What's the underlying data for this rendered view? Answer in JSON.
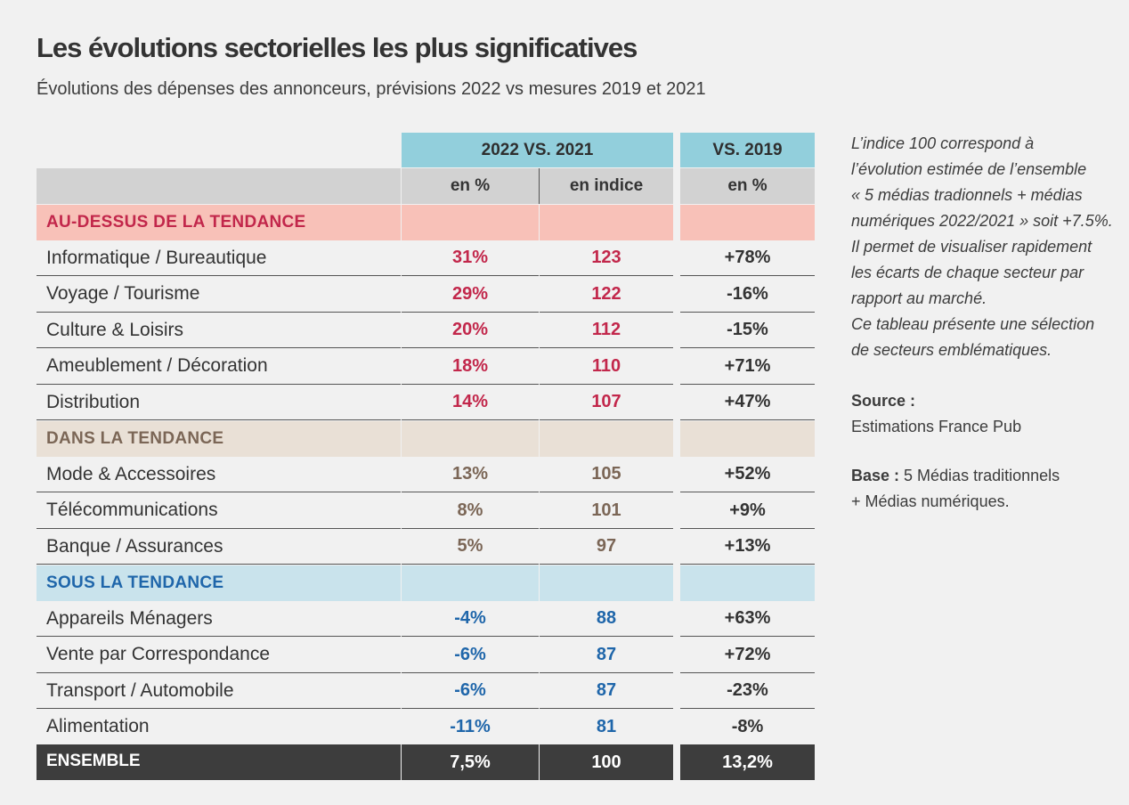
{
  "title": "Les évolutions sectorielles les plus significatives",
  "subtitle": "Évolutions des dépenses des annonceurs, prévisions 2022 vs mesures 2019 et 2021",
  "header": {
    "group1": "2022 VS. 2021",
    "group2": "VS. 2019",
    "col1": "en %",
    "col2": "en indice",
    "col3": "en %"
  },
  "sections": [
    {
      "label": "AU-DESSUS DE LA TENDANCE",
      "rows": [
        {
          "name": "Informatique / Bureautique",
          "pct": "31%",
          "index": "123",
          "vs2019": "+78%"
        },
        {
          "name": "Voyage / Tourisme",
          "pct": "29%",
          "index": "122",
          "vs2019": "-16%"
        },
        {
          "name": "Culture & Loisirs",
          "pct": "20%",
          "index": "112",
          "vs2019": "-15%"
        },
        {
          "name": "Ameublement / Décoration",
          "pct": "18%",
          "index": "110",
          "vs2019": "+71%"
        },
        {
          "name": "Distribution",
          "pct": "14%",
          "index": "107",
          "vs2019": "+47%"
        }
      ]
    },
    {
      "label": "DANS LA TENDANCE",
      "rows": [
        {
          "name": "Mode & Accessoires",
          "pct": "13%",
          "index": "105",
          "vs2019": "+52%"
        },
        {
          "name": "Télécommunications",
          "pct": "8%",
          "index": "101",
          "vs2019": "+9%"
        },
        {
          "name": "Banque / Assurances",
          "pct": "5%",
          "index": "97",
          "vs2019": "+13%"
        }
      ]
    },
    {
      "label": "SOUS LA TENDANCE",
      "rows": [
        {
          "name": "Appareils Ménagers",
          "pct": "-4%",
          "index": "88",
          "vs2019": "+63%"
        },
        {
          "name": "Vente par Correspondance",
          "pct": "-6%",
          "index": "87",
          "vs2019": "+72%"
        },
        {
          "name": "Transport  / Automobile",
          "pct": "-6%",
          "index": "87",
          "vs2019": "-23%"
        },
        {
          "name": "Alimentation",
          "pct": "-11%",
          "index": "81",
          "vs2019": "-8%"
        }
      ]
    }
  ],
  "total": {
    "name": "ENSEMBLE",
    "pct": "7,5%",
    "index": "100",
    "vs2019": "13,2%"
  },
  "side": {
    "note_lines": [
      "L’indice 100 correspond à",
      "l’évolution estimée de l’ensemble",
      "« 5 médias tradionnels + médias",
      "numériques 2022/2021 » soit +7.5%.",
      "Il permet de visualiser rapidement",
      "les écarts de chaque secteur par",
      "rapport au marché.",
      "Ce tableau présente une sélection",
      "de secteurs emblématiques."
    ],
    "source_label": "Source :",
    "source_text": "Estimations France Pub",
    "base_label": "Base :",
    "base_text_1": " 5 Médias traditionnels",
    "base_text_2": "+ Médias numériques."
  },
  "colors": {
    "header": "#92cfdc",
    "above": "#c2274b",
    "within": "#7b6656",
    "below": "#1f66aa",
    "total_bg": "#3d3d3d"
  },
  "chart_data": {
    "type": "table",
    "title": "Les évolutions sectorielles les plus significatives",
    "subtitle": "Évolutions des dépenses des annonceurs, prévisions 2022 vs mesures 2019 et 2021",
    "columns": [
      "",
      "2022 VS. 2021 en %",
      "2022 VS. 2021 en indice",
      "VS. 2019 en %"
    ],
    "rows": [
      [
        "Informatique / Bureautique",
        31,
        123,
        78
      ],
      [
        "Voyage / Tourisme",
        29,
        122,
        -16
      ],
      [
        "Culture & Loisirs",
        20,
        112,
        -15
      ],
      [
        "Ameublement / Décoration",
        18,
        110,
        71
      ],
      [
        "Distribution",
        14,
        107,
        47
      ],
      [
        "Mode & Accessoires",
        13,
        105,
        52
      ],
      [
        "Télécommunications",
        8,
        101,
        9
      ],
      [
        "Banque / Assurances",
        5,
        97,
        13
      ],
      [
        "Appareils Ménagers",
        -4,
        88,
        63
      ],
      [
        "Vente par Correspondance",
        -6,
        87,
        72
      ],
      [
        "Transport  / Automobile",
        -6,
        87,
        -23
      ],
      [
        "Alimentation",
        -11,
        81,
        -8
      ],
      [
        "ENSEMBLE",
        7.5,
        100,
        13.2
      ]
    ]
  }
}
